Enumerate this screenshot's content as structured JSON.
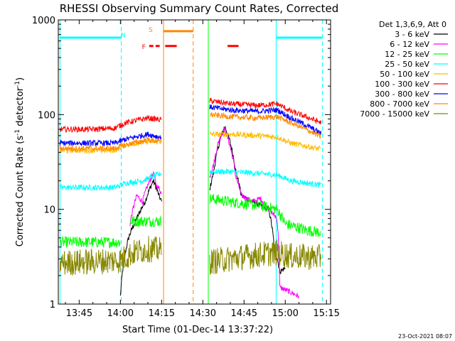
{
  "chart_data": {
    "type": "line",
    "title": "RHESSI Observing Summary Count Rates, Corrected",
    "xlabel": "Start Time (01-Dec-14 13:37:22)",
    "ylabel_main": "Corrected Count Rate (s",
    "ylabel_sup1": "-1",
    "ylabel_mid": " detector",
    "ylabel_sup2": "-1",
    "ylabel_end": ")",
    "footer": "23-Oct-2021 08:07",
    "yscale": "log",
    "ylim": [
      1,
      1000
    ],
    "xlim_min": [
      817.4,
      916.5
    ],
    "x_ticks": [
      {
        "label": "13:45",
        "min": 825
      },
      {
        "label": "14:00",
        "min": 840
      },
      {
        "label": "14:15",
        "min": 855
      },
      {
        "label": "14:30",
        "min": 870
      },
      {
        "label": "14:45",
        "min": 885
      },
      {
        "label": "15:00",
        "min": 900
      },
      {
        "label": "15:15",
        "min": 915
      }
    ],
    "y_ticks": [
      {
        "label": "1",
        "value": 1
      },
      {
        "label": "10",
        "value": 10
      },
      {
        "label": "100",
        "value": 100
      },
      {
        "label": "1000",
        "value": 1000
      }
    ],
    "legend_title": "Det 1,3,6,9, Att 0",
    "legend_position": "top-right",
    "series": [
      {
        "name": "3 - 6 keV",
        "color": "#000000",
        "segments": [
          [
            [
              840.0,
              1.2
            ],
            [
              843.0,
              5
            ],
            [
              846.0,
              8
            ],
            [
              849.0,
              12
            ],
            [
              852.0,
              20
            ],
            [
              854.0,
              14
            ],
            [
              855.0,
              12
            ]
          ],
          [
            [
              872.5,
              16
            ],
            [
              874.0,
              25
            ],
            [
              876.0,
              50
            ],
            [
              878.0,
              75
            ],
            [
              880.0,
              50
            ],
            [
              882.0,
              25
            ],
            [
              884.0,
              14
            ],
            [
              888.0,
              12
            ],
            [
              891.0,
              11
            ],
            [
              894.0,
              10
            ],
            [
              896.0,
              4
            ],
            [
              898.0,
              2.2
            ],
            [
              900.0,
              2.4
            ]
          ]
        ]
      },
      {
        "name": "6 - 12 keV",
        "color": "#ff00ff",
        "segments": [
          [
            [
              843.5,
              7
            ],
            [
              846.0,
              14
            ],
            [
              848.0,
              12
            ],
            [
              850.0,
              18
            ],
            [
              852.0,
              24
            ],
            [
              853.0,
              18
            ],
            [
              854.5,
              16
            ],
            [
              855.0,
              14
            ]
          ],
          [
            [
              872.5,
              22
            ],
            [
              874.0,
              30
            ],
            [
              876.0,
              55
            ],
            [
              878.0,
              70
            ],
            [
              880.0,
              45
            ],
            [
              882.0,
              22
            ],
            [
              884.0,
              14
            ],
            [
              888.0,
              12
            ],
            [
              891.0,
              13
            ],
            [
              894.0,
              10
            ],
            [
              897.0,
              8
            ],
            [
              898.0,
              1.5
            ],
            [
              905.0,
              1.2
            ]
          ]
        ]
      },
      {
        "name": "12 - 25 keV",
        "color": "#00ff00",
        "segments": [
          [
            [
              818.0,
              4.5
            ],
            [
              840.0,
              4.5
            ]
          ],
          [
            [
              843.5,
              7.5
            ],
            [
              855.0,
              7.5
            ]
          ],
          [
            [
              872.5,
              13
            ],
            [
              880.0,
              12
            ],
            [
              890.0,
              11
            ],
            [
              897.0,
              10
            ],
            [
              900.0,
              7
            ],
            [
              908.0,
              6
            ],
            [
              913.0,
              5.7
            ]
          ]
        ]
      },
      {
        "name": "25 - 50 keV",
        "color": "#00ffff",
        "segments": [
          [
            [
              818.0,
              17
            ],
            [
              830.0,
              17
            ],
            [
              838.0,
              17
            ],
            [
              842.0,
              19
            ],
            [
              848.0,
              20
            ],
            [
              855.0,
              24
            ]
          ],
          [
            [
              872.5,
              25
            ],
            [
              880.0,
              25
            ],
            [
              890.0,
              24
            ],
            [
              897.0,
              23
            ],
            [
              902.0,
              20
            ],
            [
              913.0,
              18
            ]
          ]
        ]
      },
      {
        "name": "50 - 100 keV",
        "color": "#ffbb00",
        "segments": [
          [
            [
              818.0,
              42
            ],
            [
              830.0,
              42
            ],
            [
              838.0,
              42
            ],
            [
              842.0,
              48
            ],
            [
              850.0,
              52
            ],
            [
              855.0,
              52
            ]
          ],
          [
            [
              872.5,
              62
            ],
            [
              880.0,
              62
            ],
            [
              890.0,
              60
            ],
            [
              897.0,
              58
            ],
            [
              902.0,
              50
            ],
            [
              913.0,
              43
            ]
          ]
        ]
      },
      {
        "name": "100 - 300 keV",
        "color": "#ff0000",
        "segments": [
          [
            [
              818.0,
              70
            ],
            [
              830.0,
              70
            ],
            [
              838.0,
              72
            ],
            [
              842.0,
              82
            ],
            [
              850.0,
              92
            ],
            [
              855.0,
              88
            ]
          ],
          [
            [
              872.5,
              140
            ],
            [
              880.0,
              130
            ],
            [
              890.0,
              125
            ],
            [
              897.0,
              130
            ],
            [
              902.0,
              108
            ],
            [
              913.0,
              82
            ]
          ]
        ]
      },
      {
        "name": "300 - 800 keV",
        "color": "#0000ff",
        "segments": [
          [
            [
              818.0,
              50
            ],
            [
              830.0,
              50
            ],
            [
              838.0,
              50
            ],
            [
              842.0,
              55
            ],
            [
              850.0,
              62
            ],
            [
              855.0,
              57
            ]
          ],
          [
            [
              872.5,
              120
            ],
            [
              880.0,
              112
            ],
            [
              890.0,
              108
            ],
            [
              897.0,
              112
            ],
            [
              902.0,
              92
            ],
            [
              913.0,
              63
            ]
          ]
        ]
      },
      {
        "name": "800 - 7000 keV",
        "color": "#ff8800",
        "segments": [
          [
            [
              818.0,
              44
            ],
            [
              830.0,
              44
            ],
            [
              838.0,
              44
            ],
            [
              842.0,
              48
            ],
            [
              850.0,
              54
            ],
            [
              855.0,
              52
            ]
          ],
          [
            [
              872.5,
              100
            ],
            [
              880.0,
              95
            ],
            [
              890.0,
              92
            ],
            [
              897.0,
              95
            ],
            [
              902.0,
              82
            ],
            [
              913.0,
              58
            ]
          ]
        ]
      },
      {
        "name": "7000 - 15000 keV",
        "color": "#888800",
        "segments": [
          [
            [
              818.0,
              2.7
            ],
            [
              840.0,
              2.9
            ],
            [
              845.0,
              3.5
            ],
            [
              850.0,
              3.8
            ],
            [
              855.0,
              3.7
            ]
          ],
          [
            [
              872.5,
              2.8
            ],
            [
              880.0,
              3.0
            ],
            [
              890.0,
              3.3
            ],
            [
              897.0,
              3.5
            ],
            [
              902.0,
              3.2
            ],
            [
              913.0,
              3.1
            ]
          ]
        ]
      }
    ],
    "night_bars": [
      {
        "x0": 818.0,
        "x1": 840.3,
        "y": 650
      },
      {
        "x0": 896.7,
        "x1": 913.5,
        "y": 650
      }
    ],
    "saa_bar": {
      "x0": 855.7,
      "x1": 866.5,
      "y": 760
    },
    "flare_bars": [
      {
        "x0": 856.3,
        "x1": 860.5,
        "y": 530
      },
      {
        "x0": 879.0,
        "x1": 883.0,
        "y": 530
      }
    ],
    "flare_dashes": [
      {
        "x0": 850.5,
        "x1": 852.0,
        "y": 530
      },
      {
        "x0": 852.8,
        "x1": 854.3,
        "y": 530
      }
    ],
    "vlines": [
      {
        "min": 818.0,
        "color": "#00ffff",
        "style": "solid"
      },
      {
        "min": 840.3,
        "color": "#00ffff",
        "style": "dash"
      },
      {
        "min": 855.7,
        "color": "#ff8800",
        "style": "solid"
      },
      {
        "min": 866.5,
        "color": "#ff8800",
        "style": "dash"
      },
      {
        "min": 872.0,
        "color": "#00ff00",
        "style": "solid"
      },
      {
        "min": 896.7,
        "color": "#00ffff",
        "style": "solid"
      },
      {
        "min": 913.5,
        "color": "#00ffff",
        "style": "dash"
      }
    ],
    "markers": [
      {
        "text": "N",
        "min": 841.0,
        "y": 700,
        "color": "#00ffff"
      },
      {
        "text": "F",
        "min": 848.5,
        "y": 530,
        "color": "#ff0000"
      },
      {
        "text": "S",
        "min": 851.0,
        "y": 800,
        "color": "#ff8800"
      }
    ]
  }
}
